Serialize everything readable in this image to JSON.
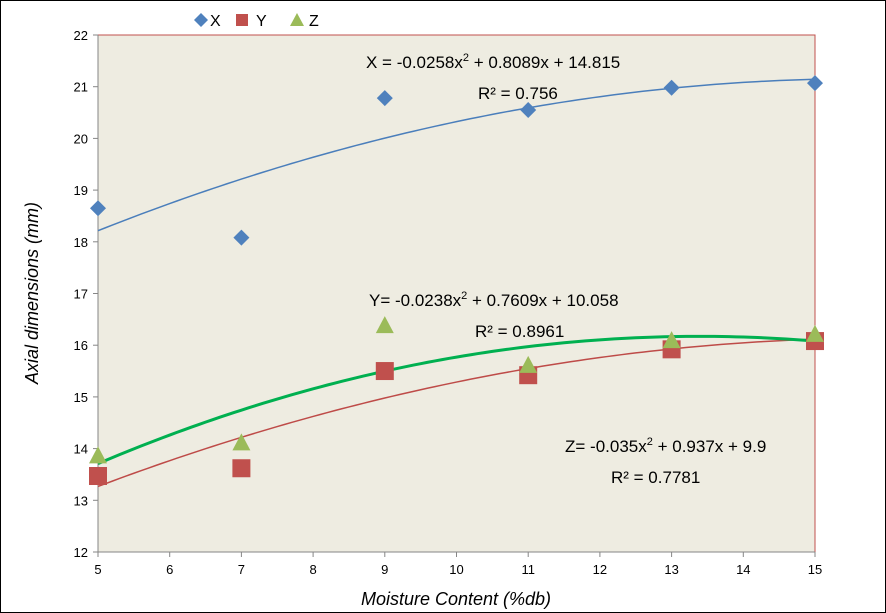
{
  "chart_data": {
    "type": "scatter",
    "xlabel": "Moisture Content (%db)",
    "ylabel": "Axial dimensions (mm)",
    "xlim": [
      5,
      15
    ],
    "ylim": [
      12,
      22
    ],
    "x_ticks": [
      5,
      6,
      7,
      8,
      9,
      10,
      11,
      12,
      13,
      14,
      15
    ],
    "y_ticks": [
      12,
      13,
      14,
      15,
      16,
      17,
      18,
      19,
      20,
      21,
      22
    ],
    "grid": false,
    "plot_background": "#eeece1",
    "legend_position": "top-left",
    "series": [
      {
        "name": "X",
        "marker": "diamond",
        "color": "#4f81bd",
        "trend_color": "#4a7ebb",
        "x": [
          5,
          7,
          9,
          11,
          13,
          15
        ],
        "y": [
          18.65,
          18.08,
          20.78,
          20.55,
          20.98,
          21.07
        ],
        "trend": {
          "a": -0.0258,
          "b": 0.8089,
          "c": 14.815
        }
      },
      {
        "name": "Y",
        "marker": "square",
        "color": "#c0504d",
        "trend_color": "#be4b48",
        "x": [
          5,
          7,
          9,
          11,
          13,
          15
        ],
        "y": [
          13.47,
          13.62,
          15.5,
          15.42,
          15.92,
          16.08
        ],
        "trend": {
          "a": -0.0238,
          "b": 0.7609,
          "c": 10.058
        }
      },
      {
        "name": "Z",
        "marker": "triangle",
        "color": "#9bbb59",
        "trend_color": "#00b050",
        "x": [
          5,
          7,
          9,
          11,
          13,
          15
        ],
        "y": [
          13.85,
          14.1,
          16.37,
          15.6,
          16.08,
          16.2
        ],
        "trend": {
          "a": -0.035,
          "b": 0.937,
          "c": 9.9
        }
      }
    ],
    "annotations": [
      {
        "eq": "X = -0.0258x",
        "rest": " + 0.8089x + 14.815",
        "r2": "R² = 0.756"
      },
      {
        "eq": "Y= -0.0238x",
        "rest": " + 0.7609x + 10.058",
        "r2": "R² = 0.8961"
      },
      {
        "eq": "Z= -0.035x",
        "rest": " + 0.937x + 9.9",
        "r2": "R² = 0.7781"
      }
    ]
  }
}
